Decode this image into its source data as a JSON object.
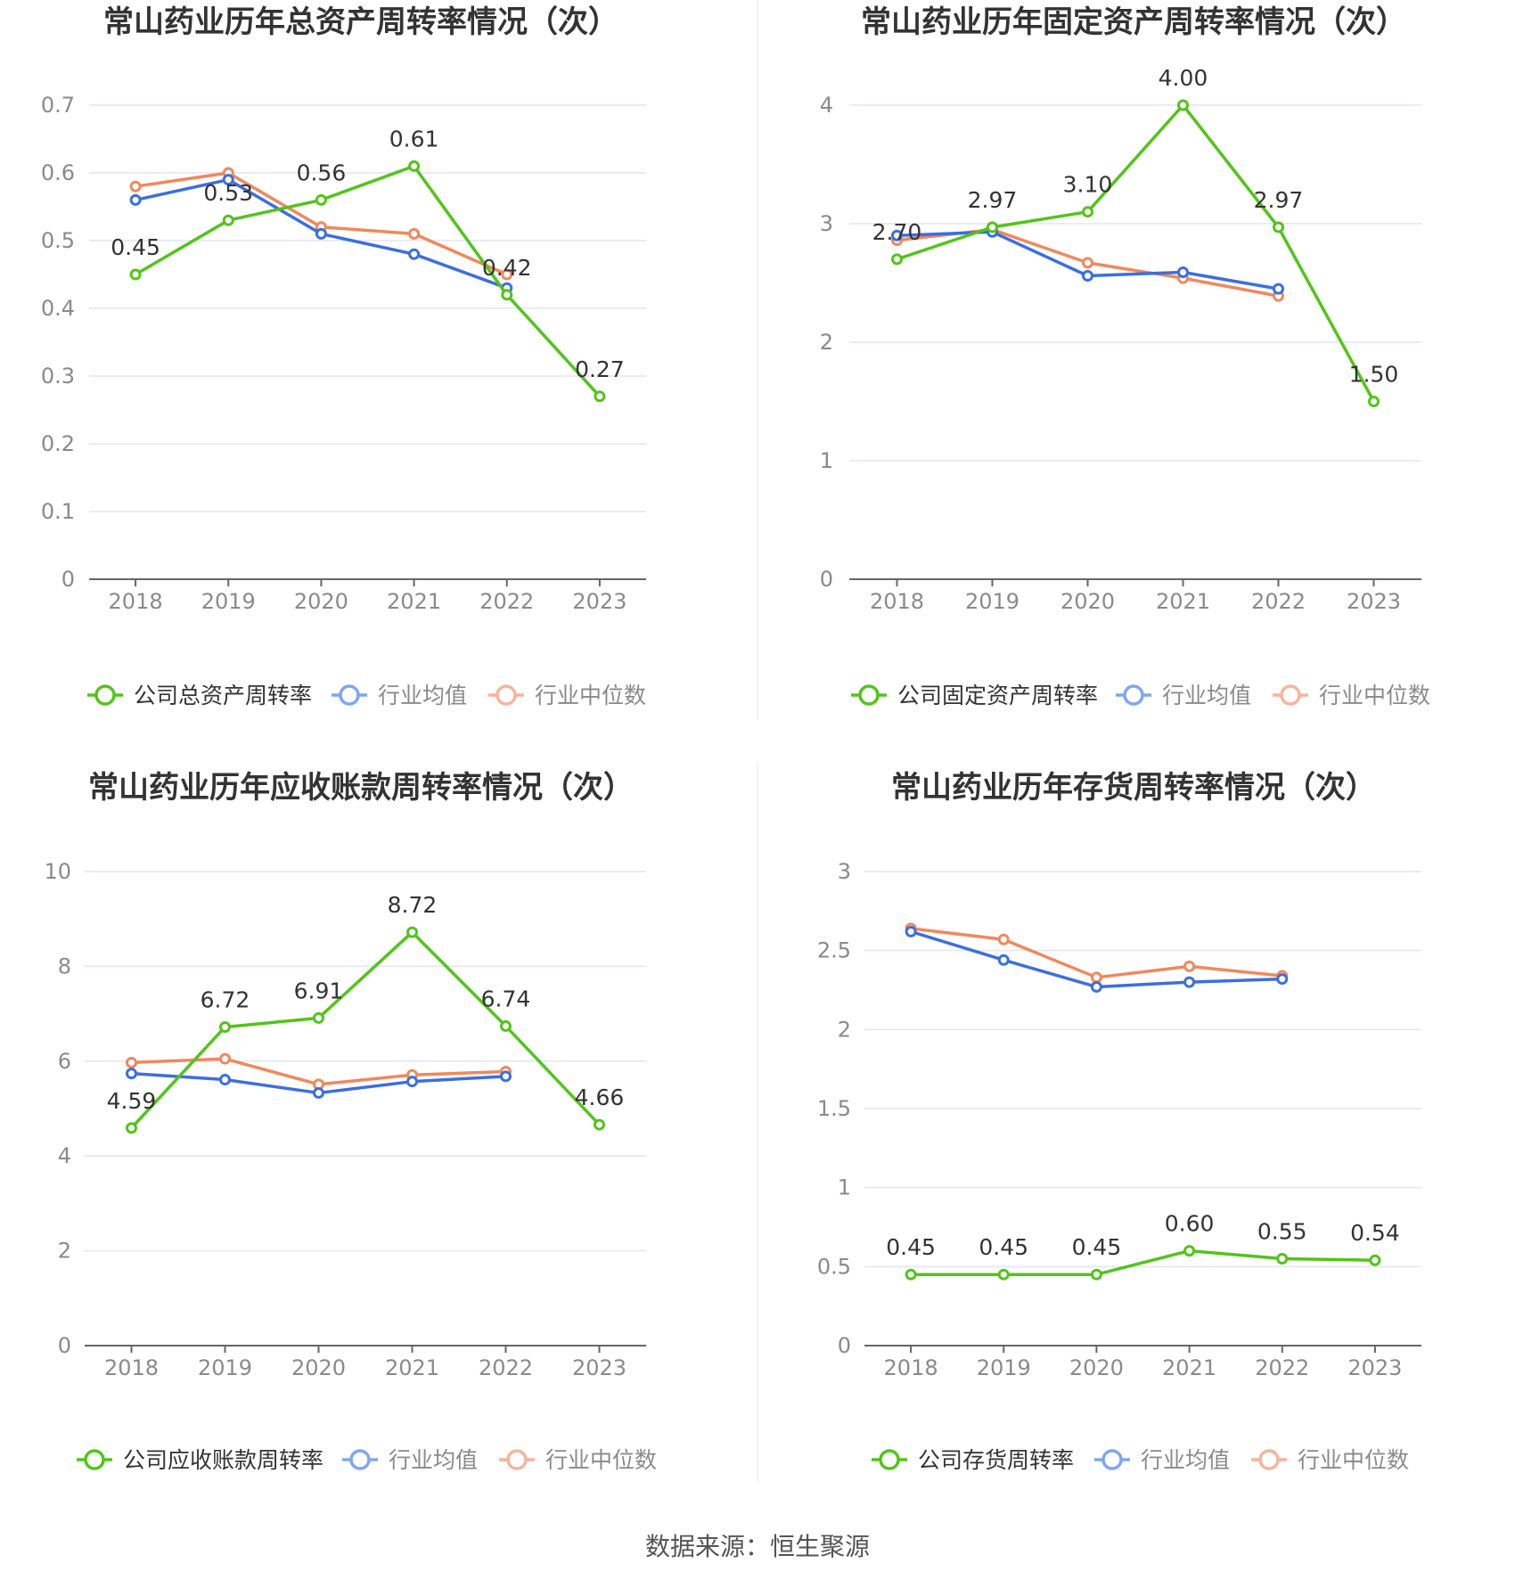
{
  "footer": "数据来源：恒生聚源",
  "colors": {
    "company": "#52c41a",
    "industry_avg": "#3a6fe0",
    "industry_median": "#f0885c",
    "legend_avg": "#7ea6f2",
    "legend_median": "#f7b49a",
    "grid": "#e3e6f2",
    "axis": "#666666"
  },
  "chart_data": [
    {
      "type": "line",
      "title": "常山药业历年总资产周转率情况（次）",
      "categories": [
        "2018",
        "2019",
        "2020",
        "2021",
        "2022",
        "2023"
      ],
      "ylim": [
        0,
        0.7
      ],
      "yticks": [
        "0",
        "0.1",
        "0.2",
        "0.3",
        "0.4",
        "0.5",
        "0.6",
        "0.7"
      ],
      "grid": true,
      "legend_position": "bottom",
      "series": [
        {
          "name": "公司总资产周转率",
          "values": [
            0.45,
            0.53,
            0.56,
            0.61,
            0.42,
            0.27
          ],
          "labels": [
            "0.45",
            "0.53",
            "0.56",
            "0.61",
            "0.42",
            "0.27"
          ]
        },
        {
          "name": "行业均值",
          "values": [
            0.56,
            0.59,
            0.51,
            0.48,
            0.43,
            null
          ]
        },
        {
          "name": "行业中位数",
          "values": [
            0.58,
            0.6,
            0.52,
            0.51,
            0.45,
            null
          ]
        }
      ]
    },
    {
      "type": "line",
      "title": "常山药业历年固定资产周转率情况（次）",
      "categories": [
        "2018",
        "2019",
        "2020",
        "2021",
        "2022",
        "2023"
      ],
      "ylim": [
        0,
        4
      ],
      "yticks": [
        "0",
        "1",
        "2",
        "3",
        "4"
      ],
      "grid": true,
      "legend_position": "bottom",
      "series": [
        {
          "name": "公司固定资产周转率",
          "values": [
            2.7,
            2.97,
            3.1,
            4.0,
            2.97,
            1.5
          ],
          "labels": [
            "2.70",
            "2.97",
            "3.10",
            "4.00",
            "2.97",
            "1.50"
          ]
        },
        {
          "name": "行业均值",
          "values": [
            2.9,
            2.93,
            2.56,
            2.59,
            2.45,
            null
          ]
        },
        {
          "name": "行业中位数",
          "values": [
            2.86,
            2.95,
            2.67,
            2.54,
            2.39,
            null
          ]
        }
      ]
    },
    {
      "type": "line",
      "title": "常山药业历年应收账款周转率情况（次）",
      "categories": [
        "2018",
        "2019",
        "2020",
        "2021",
        "2022",
        "2023"
      ],
      "ylim": [
        0,
        10
      ],
      "yticks": [
        "0",
        "2",
        "4",
        "6",
        "8",
        "10"
      ],
      "grid": true,
      "legend_position": "bottom",
      "series": [
        {
          "name": "公司应收账款周转率",
          "values": [
            4.59,
            6.72,
            6.91,
            8.72,
            6.74,
            4.66
          ],
          "labels": [
            "4.59",
            "6.72",
            "6.91",
            "8.72",
            "6.74",
            "4.66"
          ]
        },
        {
          "name": "行业均值",
          "values": [
            5.74,
            5.61,
            5.33,
            5.57,
            5.68,
            null
          ]
        },
        {
          "name": "行业中位数",
          "values": [
            5.97,
            6.05,
            5.51,
            5.71,
            5.78,
            null
          ]
        }
      ]
    },
    {
      "type": "line",
      "title": "常山药业历年存货周转率情况（次）",
      "categories": [
        "2018",
        "2019",
        "2020",
        "2021",
        "2022",
        "2023"
      ],
      "ylim": [
        0,
        3
      ],
      "yticks": [
        "0",
        "0.5",
        "1",
        "1.5",
        "2",
        "2.5",
        "3"
      ],
      "grid": true,
      "legend_position": "bottom",
      "series": [
        {
          "name": "公司存货周转率",
          "values": [
            0.45,
            0.45,
            0.45,
            0.6,
            0.55,
            0.54
          ],
          "labels": [
            "0.45",
            "0.45",
            "0.45",
            "0.60",
            "0.55",
            "0.54"
          ]
        },
        {
          "name": "行业均值",
          "values": [
            2.62,
            2.44,
            2.27,
            2.3,
            2.32,
            null
          ]
        },
        {
          "name": "行业中位数",
          "values": [
            2.64,
            2.57,
            2.33,
            2.4,
            2.34,
            null
          ]
        }
      ]
    }
  ]
}
